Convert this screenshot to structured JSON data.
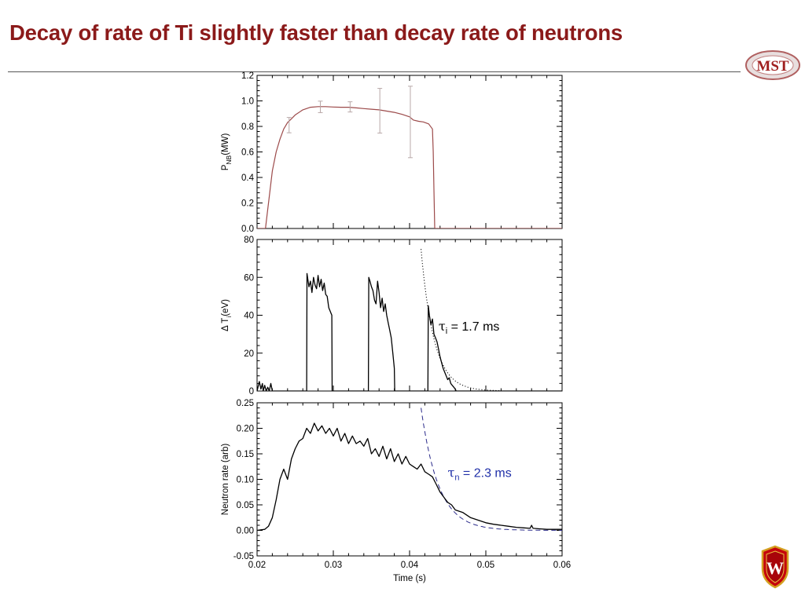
{
  "slide": {
    "title": "Decay of rate of Ti slightly faster than decay rate of neutrons",
    "logo_text": "MST",
    "crest_letter": "W",
    "colors": {
      "title": "#8b1a1a",
      "power_trace": "#9c4a4a",
      "errorbar": "#b8a8a8",
      "tau_n_annotation": "#1f2fa8"
    }
  },
  "chart_data": [
    {
      "type": "line",
      "xlim": [
        0.02,
        0.06
      ],
      "ylim": [
        0.0,
        1.2
      ],
      "ylabel": "P",
      "ylabel_sub": "NB",
      "ylabel_unit": "(MW)",
      "xticks": [
        0.02,
        0.03,
        0.04,
        0.05,
        0.06
      ],
      "yticks": [
        "0.0",
        "0.2",
        "0.4",
        "0.6",
        "0.8",
        "1.0",
        "1.2"
      ],
      "series": [
        {
          "x": [
            0.02,
            0.0211,
            0.0213,
            0.0217,
            0.022,
            0.0225,
            0.023,
            0.0235,
            0.024,
            0.0245,
            0.025,
            0.026,
            0.027,
            0.028,
            0.029,
            0.03,
            0.031,
            0.032,
            0.033,
            0.034,
            0.035,
            0.036,
            0.037,
            0.038,
            0.039,
            0.04,
            0.0405,
            0.0412,
            0.0418,
            0.0425,
            0.043,
            0.0431,
            0.0432,
            0.0433,
            0.06
          ],
          "y": [
            0.0,
            0.0,
            0.1,
            0.3,
            0.45,
            0.6,
            0.7,
            0.78,
            0.83,
            0.86,
            0.89,
            0.93,
            0.95,
            0.955,
            0.955,
            0.952,
            0.95,
            0.95,
            0.945,
            0.94,
            0.935,
            0.93,
            0.92,
            0.91,
            0.895,
            0.875,
            0.85,
            0.84,
            0.835,
            0.82,
            0.78,
            0.6,
            0.3,
            0.0,
            0.0
          ]
        }
      ],
      "errorbars": [
        {
          "x": 0.0242,
          "y": 0.81,
          "err": 0.06
        },
        {
          "x": 0.0283,
          "y": 0.953,
          "err": 0.045
        },
        {
          "x": 0.0322,
          "y": 0.953,
          "err": 0.04
        },
        {
          "x": 0.0361,
          "y": 0.923,
          "err": 0.175
        },
        {
          "x": 0.0401,
          "y": 0.835,
          "err": 0.28
        }
      ]
    },
    {
      "type": "line",
      "xlim": [
        0.02,
        0.06
      ],
      "ylim": [
        0,
        80
      ],
      "ylabel": "Δ T",
      "ylabel_sub": "i",
      "ylabel_unit": "(eV)",
      "xticks": [
        0.02,
        0.03,
        0.04,
        0.05,
        0.06
      ],
      "yticks": [
        "0",
        "20",
        "40",
        "60",
        "80"
      ],
      "series": [
        {
          "x": [
            0.02,
            0.0203,
            0.0205,
            0.0207,
            0.0208,
            0.021,
            0.0212,
            0.0214,
            0.0216,
            0.0218,
            0.022,
            0.0222,
            0.0265,
            0.02655,
            0.0268,
            0.027,
            0.0272,
            0.0274,
            0.0276,
            0.0278,
            0.028,
            0.0282,
            0.0284,
            0.0286,
            0.0288,
            0.029,
            0.0292,
            0.0294,
            0.0298,
            0.02985,
            0.0346,
            0.03465,
            0.0348,
            0.035,
            0.0352,
            0.0354,
            0.0356,
            0.0358,
            0.036,
            0.0362,
            0.0364,
            0.0366,
            0.0368,
            0.037,
            0.0372,
            0.0374,
            0.0376,
            0.0378,
            0.038,
            0.03805,
            0.0424,
            0.04245,
            0.0426,
            0.0428,
            0.043,
            0.0432,
            0.0434,
            0.0436,
            0.0438,
            0.044,
            0.0442,
            0.0444,
            0.0446,
            0.0448,
            0.045,
            0.0452,
            0.0454,
            0.0456,
            0.0458,
            0.046,
            0.0461,
            0.06
          ],
          "y": [
            0,
            5,
            1,
            4,
            0,
            3,
            0,
            2,
            0,
            4,
            0,
            0,
            0,
            62,
            55,
            58,
            52,
            60,
            56,
            54,
            61,
            55,
            59,
            53,
            57,
            51,
            50,
            44,
            40,
            0,
            0,
            60,
            58,
            55,
            53,
            48,
            46,
            58,
            52,
            44,
            49,
            42,
            46,
            40,
            36,
            32,
            28,
            20,
            12,
            0,
            0,
            45,
            40,
            35,
            38,
            30,
            28,
            26,
            22,
            18,
            15,
            12,
            10,
            8,
            6,
            7,
            4,
            3,
            2,
            1,
            0,
            0
          ]
        }
      ],
      "fit": {
        "style": "dotted",
        "x0": 0.0415,
        "x1": 0.052,
        "y0": 75,
        "decay_time_ms": 1.7
      },
      "annotation": {
        "symbol": "τ",
        "sub": "i",
        "text": " = 1.7 ms",
        "x": 0.0438,
        "y": 32
      }
    },
    {
      "type": "line",
      "xlim": [
        0.02,
        0.06
      ],
      "ylim": [
        -0.05,
        0.25
      ],
      "ylabel": "Neutron rate (arb)",
      "xlabel": "Time (s)",
      "xticks": [
        0.02,
        0.03,
        0.04,
        0.05,
        0.06
      ],
      "xticklabels": [
        "0.02",
        "0.03",
        "0.04",
        "0.05",
        "0.06"
      ],
      "yticks": [
        "-0.05",
        "0.00",
        "0.05",
        "0.10",
        "0.15",
        "0.20",
        "0.25"
      ],
      "series": [
        {
          "x": [
            0.02,
            0.021,
            0.0215,
            0.022,
            0.0225,
            0.023,
            0.0235,
            0.024,
            0.0245,
            0.025,
            0.0255,
            0.026,
            0.0265,
            0.027,
            0.0275,
            0.028,
            0.0285,
            0.029,
            0.0295,
            0.03,
            0.0305,
            0.031,
            0.0315,
            0.032,
            0.0325,
            0.033,
            0.0335,
            0.034,
            0.0345,
            0.035,
            0.0355,
            0.036,
            0.0365,
            0.037,
            0.0375,
            0.038,
            0.0385,
            0.039,
            0.0395,
            0.04,
            0.0405,
            0.041,
            0.0415,
            0.042,
            0.0425,
            0.043,
            0.0435,
            0.044,
            0.0445,
            0.045,
            0.0455,
            0.046,
            0.047,
            0.048,
            0.049,
            0.05,
            0.051,
            0.052,
            0.053,
            0.054,
            0.055,
            0.0558,
            0.056,
            0.0562,
            0.057,
            0.058,
            0.059,
            0.06
          ],
          "y": [
            0.0,
            0.002,
            0.008,
            0.025,
            0.06,
            0.1,
            0.12,
            0.1,
            0.14,
            0.16,
            0.175,
            0.18,
            0.2,
            0.19,
            0.21,
            0.195,
            0.205,
            0.19,
            0.2,
            0.185,
            0.2,
            0.175,
            0.19,
            0.17,
            0.185,
            0.17,
            0.175,
            0.165,
            0.18,
            0.15,
            0.16,
            0.145,
            0.165,
            0.14,
            0.16,
            0.135,
            0.15,
            0.13,
            0.145,
            0.13,
            0.125,
            0.12,
            0.13,
            0.115,
            0.11,
            0.105,
            0.09,
            0.075,
            0.065,
            0.055,
            0.05,
            0.04,
            0.035,
            0.025,
            0.02,
            0.015,
            0.012,
            0.01,
            0.008,
            0.006,
            0.005,
            0.004,
            0.01,
            0.004,
            0.003,
            0.002,
            0.002,
            0.002
          ]
        }
      ],
      "fit": {
        "style": "dashed",
        "x0": 0.0415,
        "x1": 0.0605,
        "y0": 0.24,
        "decay_time_ms": 2.3
      },
      "annotation": {
        "symbol": "τ",
        "sub": "n",
        "text": " = 2.3 ms",
        "x": 0.045,
        "y": 0.105
      }
    }
  ]
}
